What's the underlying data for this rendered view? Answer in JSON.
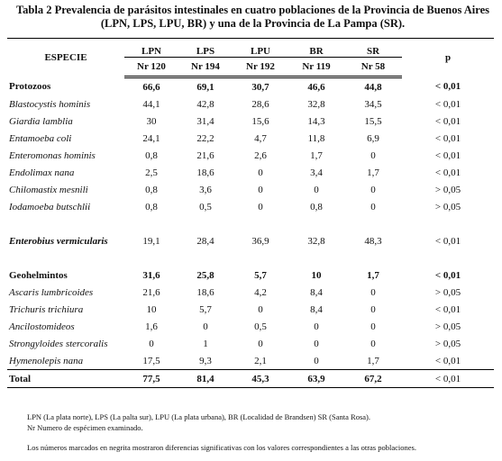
{
  "title": "Tabla 2 Prevalencia de parásitos intestinales en cuatro poblaciones de la Provincia de Buenos Aires (LPN, LPS, LPU, BR) y una de la Provincia de La Pampa (SR).",
  "table": {
    "header": [
      "ESPECIE",
      "LPN",
      "LPS",
      "LPU",
      "BR",
      "SR",
      "p"
    ],
    "subheader": [
      "Nr 120",
      "Nr 194",
      "Nr 192",
      "Nr 119",
      "Nr 58"
    ],
    "rows": [
      [
        "Protozoos",
        "66,6",
        "69,1",
        "30,7",
        "46,6",
        "44,8",
        "< 0,01"
      ],
      [
        "Blastocystis hominis",
        "44,1",
        "42,8",
        "28,6",
        "32,8",
        "34,5",
        "< 0,01"
      ],
      [
        "Giardia lamblia",
        "30",
        "31,4",
        "15,6",
        "14,3",
        "15,5",
        "< 0,01"
      ],
      [
        "Entamoeba coli",
        "24,1",
        "22,2",
        "4,7",
        "11,8",
        "6,9",
        "< 0,01"
      ],
      [
        "Enteromonas hominis",
        "0,8",
        "21,6",
        "2,6",
        "1,7",
        "0",
        "< 0,01"
      ],
      [
        "Endolimax nana",
        "2,5",
        "18,6",
        "0",
        "3,4",
        "1,7",
        "< 0,01"
      ],
      [
        "Chilomastix mesnili",
        "0,8",
        "3,6",
        "0",
        "0",
        "0",
        "> 0,05"
      ],
      [
        "Iodamoeba butschlii",
        "0,8",
        "0,5",
        "0",
        "0,8",
        "0",
        "> 0,05"
      ],
      [
        "Enterobius vermicularis",
        "19,1",
        "28,4",
        "36,9",
        "32,8",
        "48,3",
        "< 0,01"
      ],
      [
        "Geohelmintos",
        "31,6",
        "25,8",
        "5,7",
        "10",
        "1,7",
        "< 0,01"
      ],
      [
        "Ascaris lumbricoides",
        "21,6",
        "18,6",
        "4,2",
        "8,4",
        "0",
        "> 0,05"
      ],
      [
        "Trichuris trichiura",
        "10",
        "5,7",
        "0",
        "8,4",
        "0",
        "< 0,01"
      ],
      [
        "Ancilostomideos",
        "1,6",
        "0",
        "0,5",
        "0",
        "0",
        "> 0,05"
      ],
      [
        "Strongyloides stercoralis",
        "0",
        "1",
        "0",
        "0",
        "0",
        "> 0,05"
      ],
      [
        "Hymenolepis nana",
        "17,5",
        "9,3",
        "2,1",
        "0",
        "1,7",
        "< 0,01"
      ],
      [
        "Total",
        "77,5",
        "81,4",
        "45,3",
        "63,9",
        "67,2",
        "< 0,01"
      ]
    ]
  },
  "notes": [
    "LPN (La plata norte), LPS (La palta sur), LPU (La plata urbana), BR (Localidad de Brandsen) SR (Santa Rosa).",
    "Nr Numero de espécimen examinado.",
    "Los números marcados en negrita mostraron diferencias significativas con los valores correspondientes a las otras poblaciones."
  ]
}
